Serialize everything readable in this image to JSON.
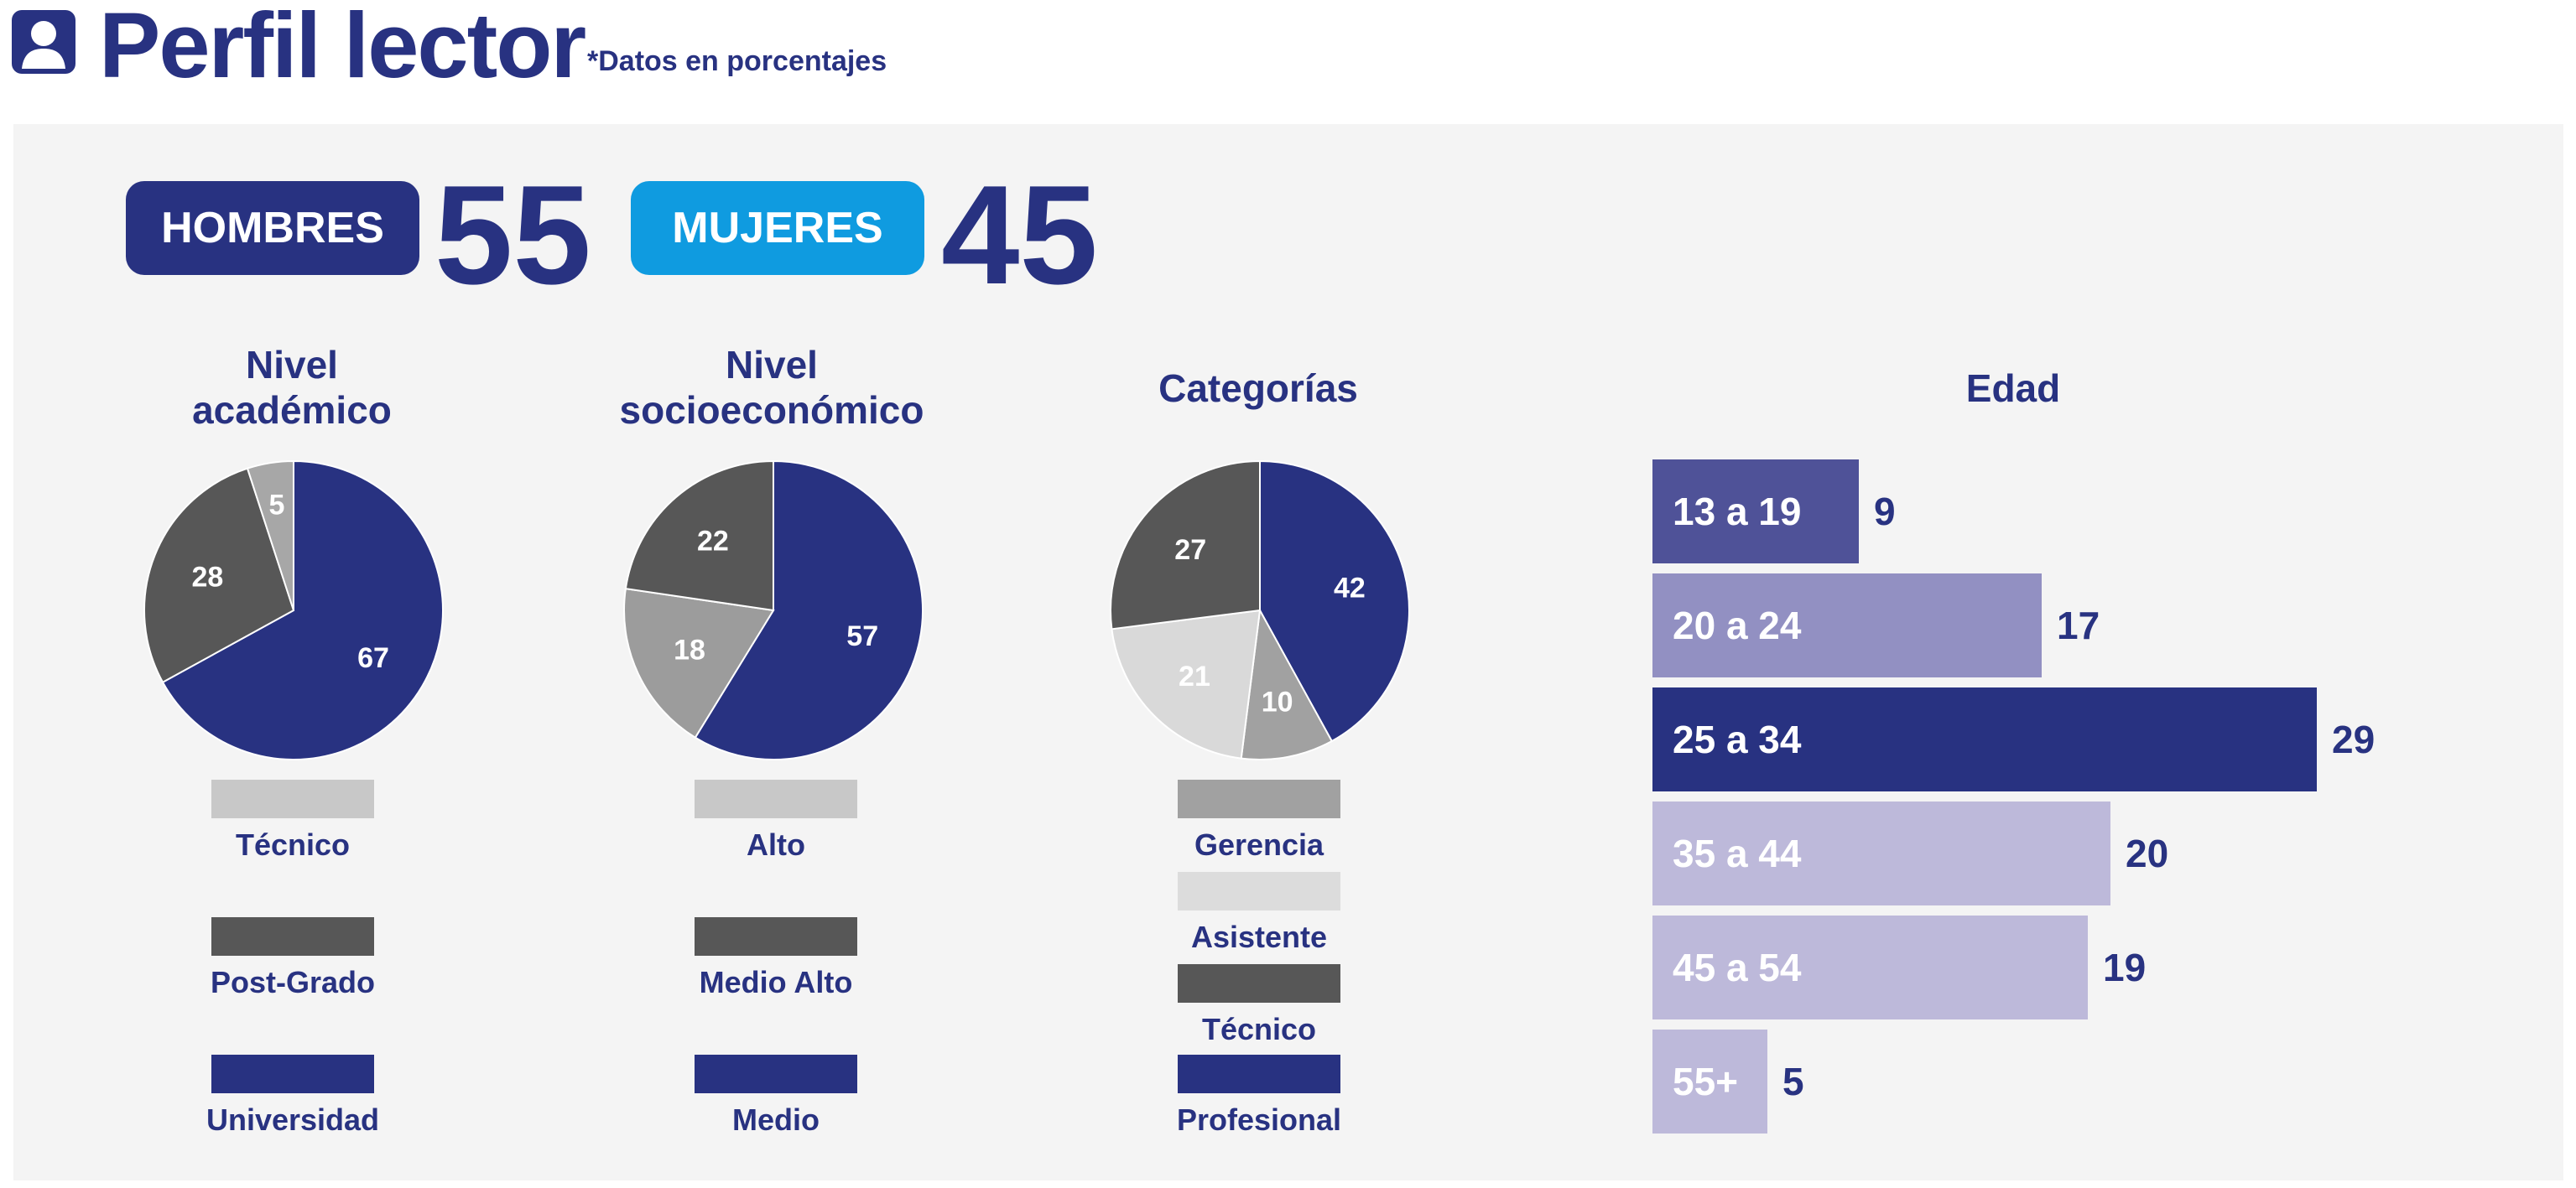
{
  "header": {
    "title": "Perfil lector",
    "subtitle": "*Datos en porcentajes",
    "icon": "user-icon"
  },
  "gender": {
    "men_label": "HOMBRES",
    "men_value": "55",
    "women_label": "MUJERES",
    "women_value": "45",
    "men_color": "#283281",
    "women_color": "#0f9be0"
  },
  "chart_data": [
    {
      "type": "pie",
      "title": "Nivel académico",
      "slices": [
        {
          "label": "Universidad",
          "value": 67,
          "color": "#283281"
        },
        {
          "label": "Post-Grado",
          "value": 28,
          "color": "#575757"
        },
        {
          "label": "Técnico",
          "value": 5,
          "color": "#a7a7a7"
        }
      ],
      "legend": [
        {
          "label": "Técnico",
          "color": "#c8c8c8"
        },
        {
          "label": "Post-Grado",
          "color": "#575757"
        },
        {
          "label": "Universidad",
          "color": "#283281"
        }
      ]
    },
    {
      "type": "pie",
      "title": "Nivel socioeconómico",
      "slices": [
        {
          "label": "Medio",
          "value": 57,
          "color": "#283281"
        },
        {
          "label": "Alto",
          "value": 18,
          "color": "#9c9c9c"
        },
        {
          "label": "Medio Alto",
          "value": 22,
          "color": "#575757"
        }
      ],
      "legend": [
        {
          "label": "Alto",
          "color": "#c8c8c8"
        },
        {
          "label": "Medio Alto",
          "color": "#575757"
        },
        {
          "label": "Medio",
          "color": "#283281"
        }
      ]
    },
    {
      "type": "pie",
      "title": "Categorías",
      "slices": [
        {
          "label": "Profesional",
          "value": 42,
          "color": "#283281"
        },
        {
          "label": "Gerencia",
          "value": 10,
          "color": "#a1a1a1"
        },
        {
          "label": "Asistente",
          "value": 21,
          "color": "#d9d9d9"
        },
        {
          "label": "Técnico",
          "value": 27,
          "color": "#575757"
        }
      ],
      "legend": [
        {
          "label": "Gerencia",
          "color": "#a1a1a1"
        },
        {
          "label": "Asistente",
          "color": "#dcdcdc"
        },
        {
          "label": "Técnico",
          "color": "#575757"
        },
        {
          "label": "Profesional",
          "color": "#283281"
        }
      ]
    },
    {
      "type": "bar",
      "orientation": "horizontal",
      "title": "Edad",
      "categories": [
        "13 a 19",
        "20 a 24",
        "25 a 34",
        "35 a 44",
        "45 a 54",
        "55+"
      ],
      "values": [
        9,
        17,
        29,
        20,
        19,
        5
      ],
      "colors": [
        "#4f5298",
        "#9290c2",
        "#283281",
        "#bdb9da",
        "#bdb9da",
        "#bdb9da"
      ]
    }
  ]
}
